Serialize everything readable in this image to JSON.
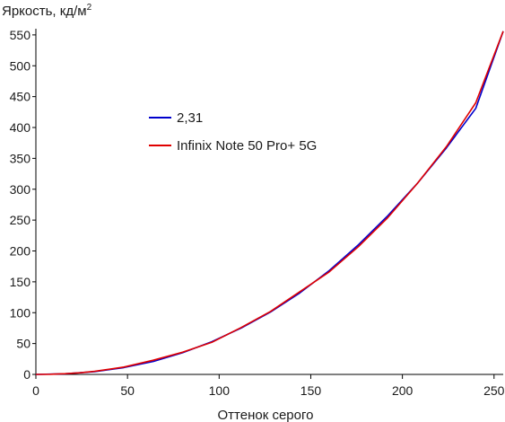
{
  "chart_data": {
    "type": "line",
    "title": "",
    "ylabel": "Яркость, кд/м",
    "ylabel_superscript": "2",
    "xlabel": "Оттенок серого",
    "xlim": [
      0,
      255
    ],
    "ylim": [
      0,
      560
    ],
    "xticks": [
      0,
      50,
      100,
      150,
      200,
      250
    ],
    "yticks": [
      0,
      50,
      100,
      150,
      200,
      250,
      300,
      350,
      400,
      450,
      500,
      550
    ],
    "grid": false,
    "legend_position": "center-left",
    "series": [
      {
        "name": "2,31",
        "color": "#0000cc",
        "x": [
          0,
          16,
          32,
          48,
          64,
          80,
          96,
          112,
          128,
          144,
          160,
          176,
          192,
          208,
          224,
          240,
          255
        ],
        "y": [
          0,
          1.0,
          4.5,
          11.0,
          21.0,
          35.0,
          53.0,
          75.0,
          101.0,
          132.0,
          168.0,
          210.0,
          257.0,
          309.0,
          367.0,
          431.0,
          556.0
        ]
      },
      {
        "name": "Infinix Note 50 Pro+ 5G",
        "color": "#e00000",
        "x": [
          0,
          8,
          16,
          24,
          32,
          48,
          64,
          80,
          96,
          112,
          128,
          144,
          160,
          176,
          192,
          208,
          224,
          240,
          255
        ],
        "y": [
          0,
          0.3,
          1.2,
          2.6,
          5.0,
          12.0,
          23.0,
          36.0,
          52.0,
          76.0,
          102.0,
          134.0,
          166.0,
          207.0,
          254.0,
          309.0,
          369.0,
          440.0,
          556.0
        ]
      }
    ]
  }
}
